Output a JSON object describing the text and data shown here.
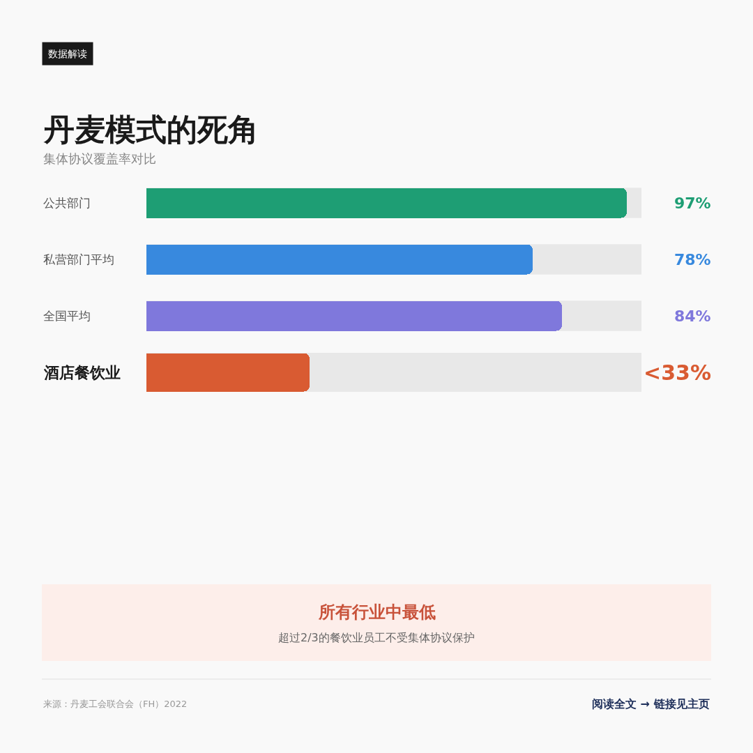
{
  "chart_data": {
    "type": "bar",
    "orientation": "horizontal",
    "title": "丹麦模式的死角",
    "subtitle": "集体协议覆盖率对比",
    "categories": [
      "公共部门",
      "私营部门平均",
      "全国平均",
      "酒店餐饮业"
    ],
    "values": [
      97,
      78,
      84,
      33
    ],
    "colors": [
      "#1e9e74",
      "#3889de",
      "#7f78dc",
      "#d95b32"
    ],
    "value_labels": [
      "97%",
      "78%",
      "84%",
      "<33%"
    ],
    "xlim": [
      0,
      100
    ],
    "grid": false,
    "legend": false,
    "tick_labels": false,
    "annotations": [
      "数据解读",
      "所有行业中最低",
      "超过2/3的餐饮业员工不受集体协议保护",
      "来源：丹麦工会联合会（FH）2022",
      "阅读全文 → 链接见主页"
    ]
  }
}
